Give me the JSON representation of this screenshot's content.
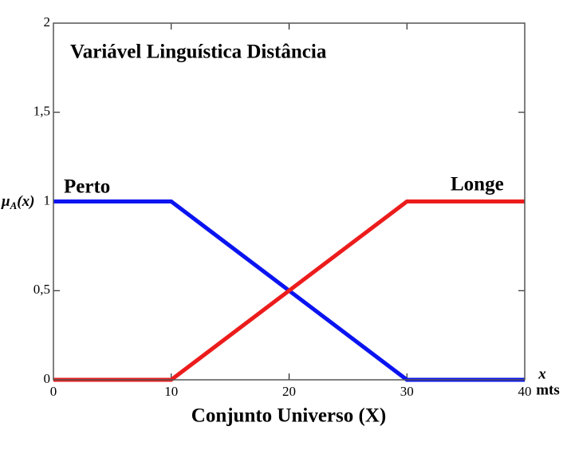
{
  "chart_data": {
    "type": "line",
    "title": "Variável Linguística Distância",
    "xlabel": "Conjunto Universo (X)",
    "ylabel_parts": [
      "μ",
      "A",
      "(x)"
    ],
    "xunit": [
      "x",
      "mts"
    ],
    "x": [
      0,
      10,
      30,
      40
    ],
    "series": [
      {
        "name": "Perto",
        "color": "#0a14f0",
        "values": [
          1,
          1,
          0,
          0
        ]
      },
      {
        "name": "Longe",
        "color": "#ec1c1c",
        "values": [
          0,
          0,
          1,
          1
        ]
      }
    ],
    "xlim": [
      0,
      40
    ],
    "xticks": [
      0,
      10,
      20,
      30,
      40
    ],
    "ylim": [
      0,
      2
    ],
    "yticks": [
      0,
      {
        "value": 0.5,
        "label": "0,5"
      },
      1,
      {
        "value": 1.5,
        "label": "1,5"
      },
      2
    ]
  }
}
